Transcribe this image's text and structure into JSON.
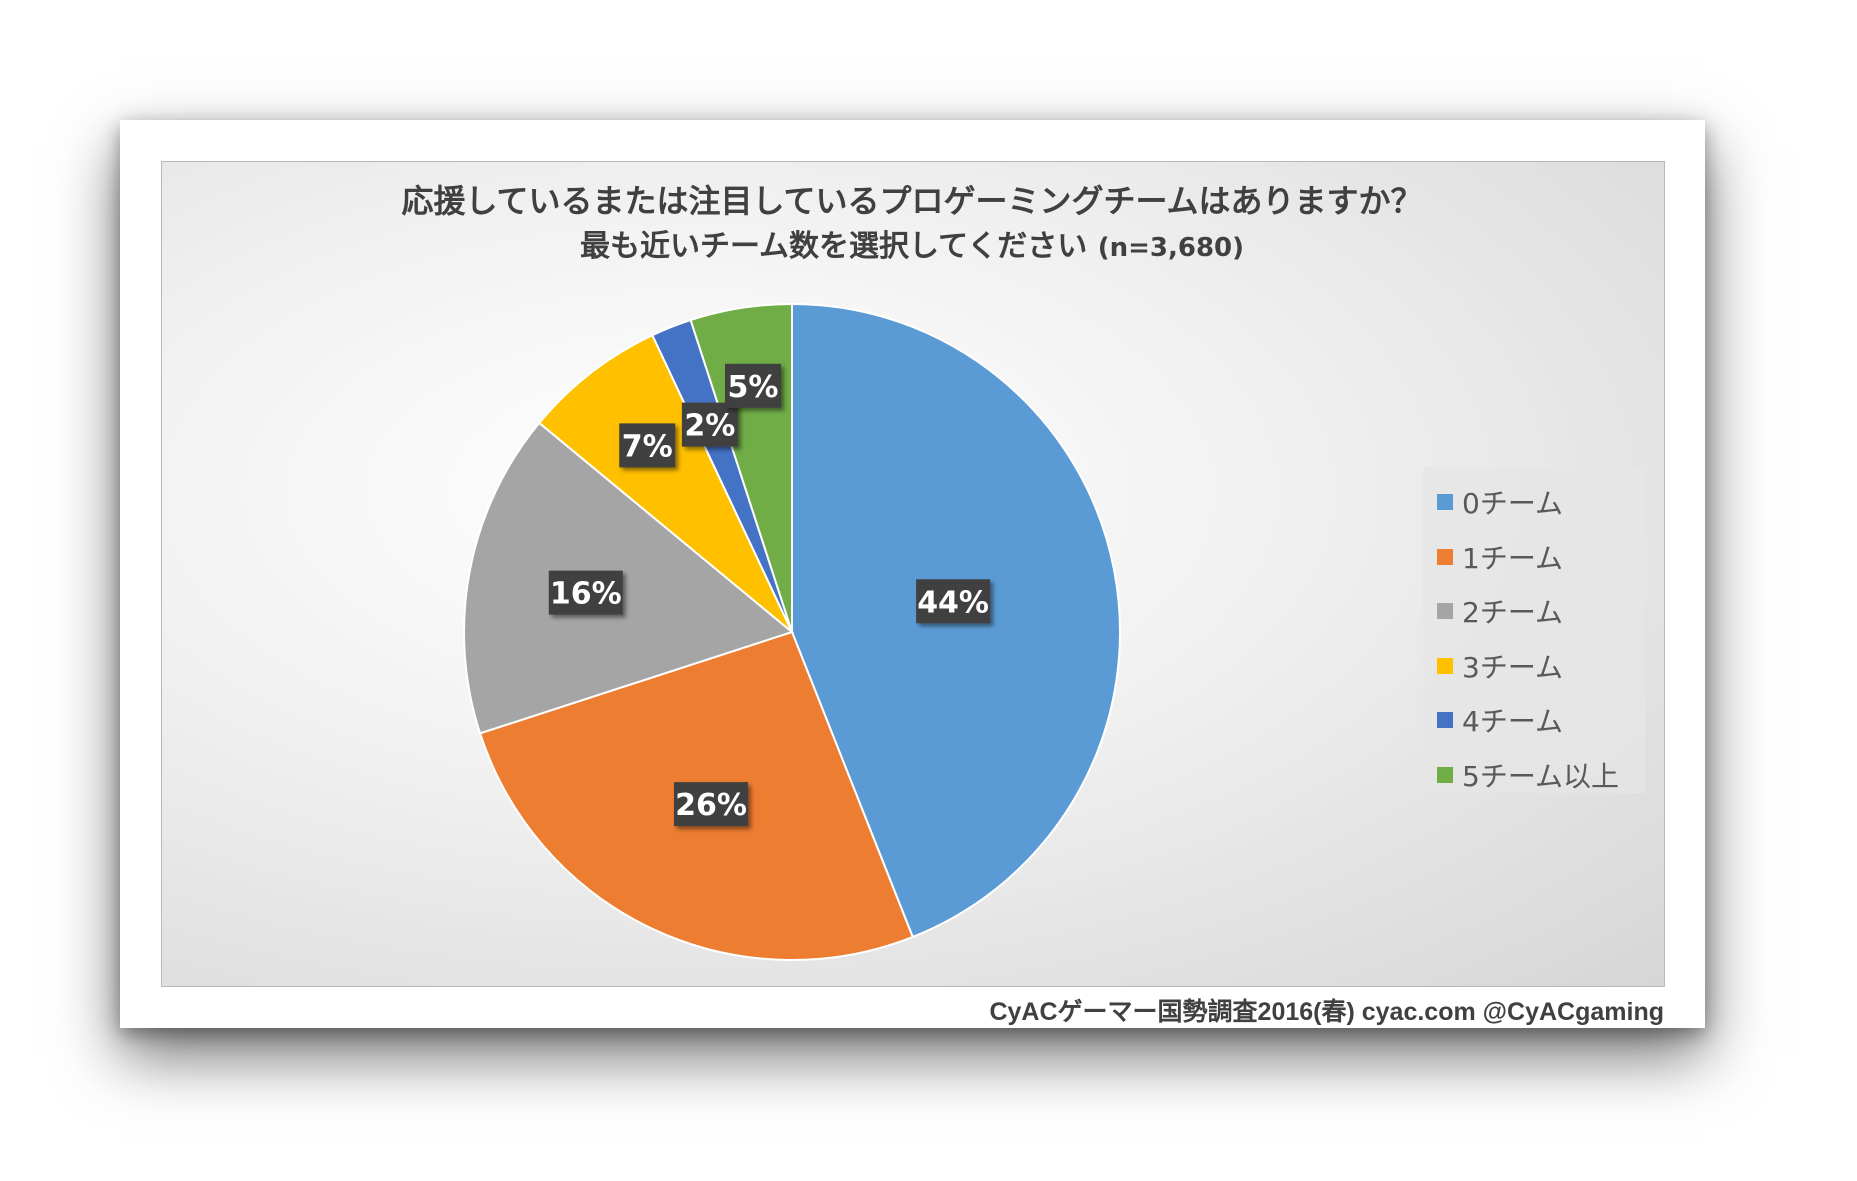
{
  "chart_data": {
    "type": "pie",
    "title": "応援しているまたは注目しているプロゲーミングチームはありますか？",
    "subtitle": "最も近いチーム数を選択してください",
    "sample": "(n=3,680)",
    "categories": [
      "0チーム",
      "1チーム",
      "2チーム",
      "3チーム",
      "4チーム",
      "5チーム以上"
    ],
    "values": [
      44,
      26,
      16,
      7,
      2,
      5
    ],
    "data_labels": [
      "44%",
      "26%",
      "16%",
      "7%",
      "2%",
      "5%"
    ],
    "colors": [
      "#5b9bd5",
      "#ed7d31",
      "#a5a5a5",
      "#ffc000",
      "#4472c4",
      "#70ad47"
    ],
    "legend_position": "right"
  },
  "footer": "CyACゲーマー国勢調査2016(春) cyac.com @CyACgaming"
}
